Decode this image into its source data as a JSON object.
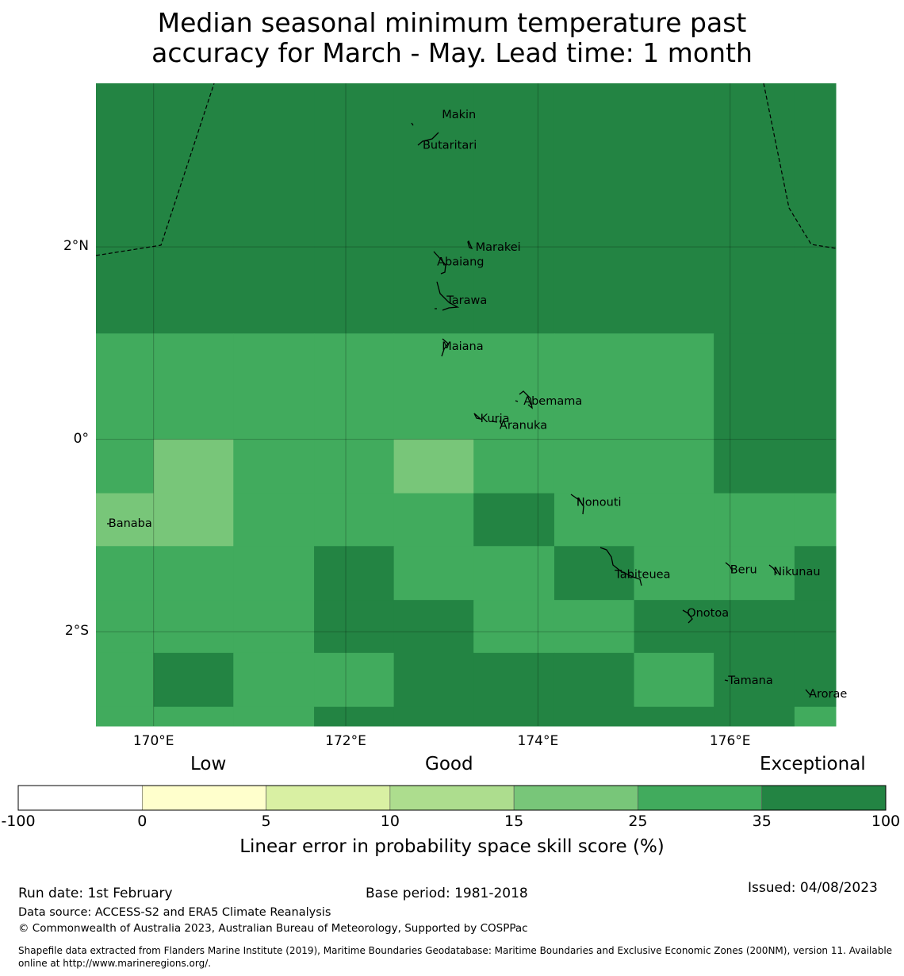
{
  "title": {
    "line1": "Median seasonal minimum temperature past",
    "line2": "accuracy for March - May. Lead time: 1 month"
  },
  "map": {
    "lon_range": [
      169.4,
      177.1
    ],
    "lat_range": [
      -2.98,
      3.7
    ],
    "x_ticks": [
      {
        "lon": 170,
        "label": "170°E"
      },
      {
        "lon": 172,
        "label": "172°E"
      },
      {
        "lon": 174,
        "label": "174°E"
      },
      {
        "lon": 176,
        "label": "176°E"
      }
    ],
    "y_ticks": [
      {
        "lat": 2,
        "label": "2°N"
      },
      {
        "lat": 0,
        "label": "0°"
      },
      {
        "lat": -2,
        "label": "2°S"
      }
    ],
    "grid_lon_edges": [
      169.4,
      170.0,
      170.83,
      171.67,
      172.5,
      173.33,
      174.17,
      175.0,
      175.83,
      176.67,
      177.1
    ],
    "grid_lat_edges": [
      3.7,
      1.1,
      0.0,
      -0.56,
      -1.11,
      -1.67,
      -2.22,
      -2.78,
      -2.98
    ],
    "grid_classes": [
      [
        6,
        6,
        6,
        6,
        6,
        6,
        6,
        6,
        6,
        6
      ],
      [
        5,
        5,
        5,
        5,
        5,
        5,
        5,
        5,
        6,
        6
      ],
      [
        5,
        4,
        5,
        5,
        4,
        5,
        5,
        5,
        6,
        6
      ],
      [
        4,
        4,
        5,
        5,
        5,
        6,
        5,
        5,
        5,
        5
      ],
      [
        5,
        5,
        5,
        6,
        5,
        5,
        6,
        5,
        5,
        6
      ],
      [
        5,
        5,
        5,
        6,
        6,
        5,
        5,
        6,
        6,
        6
      ],
      [
        5,
        6,
        5,
        5,
        6,
        6,
        6,
        5,
        6,
        6
      ],
      [
        5,
        5,
        5,
        6,
        6,
        6,
        6,
        6,
        6,
        5
      ]
    ],
    "islands": [
      {
        "name": "Makin",
        "lon": 173.0,
        "lat": 3.38
      },
      {
        "name": "Butaritari",
        "lon": 172.8,
        "lat": 3.06
      },
      {
        "name": "Marakei",
        "lon": 173.35,
        "lat": 2.0
      },
      {
        "name": "Abaiang",
        "lon": 172.95,
        "lat": 1.85
      },
      {
        "name": "Tarawa",
        "lon": 173.05,
        "lat": 1.45
      },
      {
        "name": "Maiana",
        "lon": 173.0,
        "lat": 0.97
      },
      {
        "name": "Abemama",
        "lon": 173.85,
        "lat": 0.4
      },
      {
        "name": "Kuria",
        "lon": 173.4,
        "lat": 0.22
      },
      {
        "name": "Aranuka",
        "lon": 173.6,
        "lat": 0.15
      },
      {
        "name": "Nonouti",
        "lon": 174.4,
        "lat": -0.65
      },
      {
        "name": "Banaba",
        "lon": 169.53,
        "lat": -0.87
      },
      {
        "name": "Tabiteuea",
        "lon": 174.8,
        "lat": -1.4
      },
      {
        "name": "Beru",
        "lon": 176.0,
        "lat": -1.35
      },
      {
        "name": "Nikunau",
        "lon": 176.45,
        "lat": -1.37
      },
      {
        "name": "Onotoa",
        "lon": 175.55,
        "lat": -1.8
      },
      {
        "name": "Tamana",
        "lon": 175.98,
        "lat": -2.5
      },
      {
        "name": "Arorae",
        "lon": 176.82,
        "lat": -2.64
      }
    ]
  },
  "colorbar": {
    "categories": [
      "Low",
      "Good",
      "Exceptional"
    ],
    "ticks": [
      "-100",
      "0",
      "5",
      "10",
      "15",
      "25",
      "35",
      "100"
    ],
    "colors": [
      "#ffffff",
      "#ffffcc",
      "#d9f0a3",
      "#addd8e",
      "#78c679",
      "#41ab5d",
      "#238443"
    ],
    "label": "Linear error in probability space skill score (%)"
  },
  "footer": {
    "run_date": "Run date: 1st February",
    "base_period": "Base period: 1981-2018",
    "issued": "Issued: 04/08/2023",
    "data_source": "Data source: ACCESS-S2 and ERA5 Climate Reanalysis",
    "copyright": "© Commonwealth of Australia 2023, Australian Bureau of Meteorology, Supported by COSPPac",
    "shapefile_line1": "Shapefile data extracted from Flanders Marine Institute (2019), Maritime Boundaries Geodatabase: Maritime Boundaries and Exclusive Economic Zones (200NM), version 11. Available",
    "shapefile_line2": "online at http://www.marineregions.org/."
  }
}
